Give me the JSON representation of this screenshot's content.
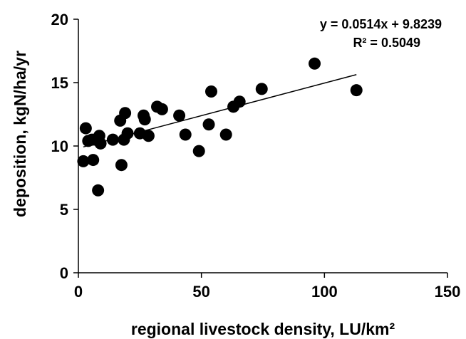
{
  "chart_data": {
    "type": "scatter",
    "xlabel": "regional livestock density, LU/km²",
    "ylabel": "deposition, kgN/ha/yr",
    "xlim": [
      0,
      150
    ],
    "ylim": [
      0,
      20
    ],
    "x_ticks": [
      "0",
      "50",
      "100",
      "150"
    ],
    "y_ticks": [
      "0",
      "5",
      "10",
      "15",
      "20"
    ],
    "grid": false,
    "marker_color": "#000000",
    "points": [
      {
        "x": 2,
        "y": 8.8
      },
      {
        "x": 3,
        "y": 11.4
      },
      {
        "x": 4,
        "y": 10.4
      },
      {
        "x": 5.5,
        "y": 10.5
      },
      {
        "x": 6,
        "y": 8.9
      },
      {
        "x": 7,
        "y": 10.5
      },
      {
        "x": 8,
        "y": 6.5
      },
      {
        "x": 8.5,
        "y": 10.8
      },
      {
        "x": 9,
        "y": 10.2
      },
      {
        "x": 14,
        "y": 10.5
      },
      {
        "x": 17,
        "y": 12.0
      },
      {
        "x": 17.5,
        "y": 8.5
      },
      {
        "x": 18.5,
        "y": 10.5
      },
      {
        "x": 19,
        "y": 12.6
      },
      {
        "x": 20,
        "y": 11.0
      },
      {
        "x": 25,
        "y": 11.0
      },
      {
        "x": 26.5,
        "y": 12.4
      },
      {
        "x": 27,
        "y": 12.1
      },
      {
        "x": 28.5,
        "y": 10.8
      },
      {
        "x": 32,
        "y": 13.1
      },
      {
        "x": 34,
        "y": 12.9
      },
      {
        "x": 41,
        "y": 12.4
      },
      {
        "x": 43.5,
        "y": 10.9
      },
      {
        "x": 49,
        "y": 9.6
      },
      {
        "x": 53,
        "y": 11.7
      },
      {
        "x": 54,
        "y": 14.3
      },
      {
        "x": 60,
        "y": 10.9
      },
      {
        "x": 63,
        "y": 13.1
      },
      {
        "x": 65.5,
        "y": 13.5
      },
      {
        "x": 74.5,
        "y": 14.5
      },
      {
        "x": 96,
        "y": 16.5
      },
      {
        "x": 113,
        "y": 14.4
      }
    ],
    "trendline": {
      "slope": 0.0514,
      "intercept": 9.8239,
      "x_range": [
        2,
        113
      ],
      "equation": "y = 0.0514x + 9.8239",
      "r_squared": "R² = 0.5049"
    }
  }
}
